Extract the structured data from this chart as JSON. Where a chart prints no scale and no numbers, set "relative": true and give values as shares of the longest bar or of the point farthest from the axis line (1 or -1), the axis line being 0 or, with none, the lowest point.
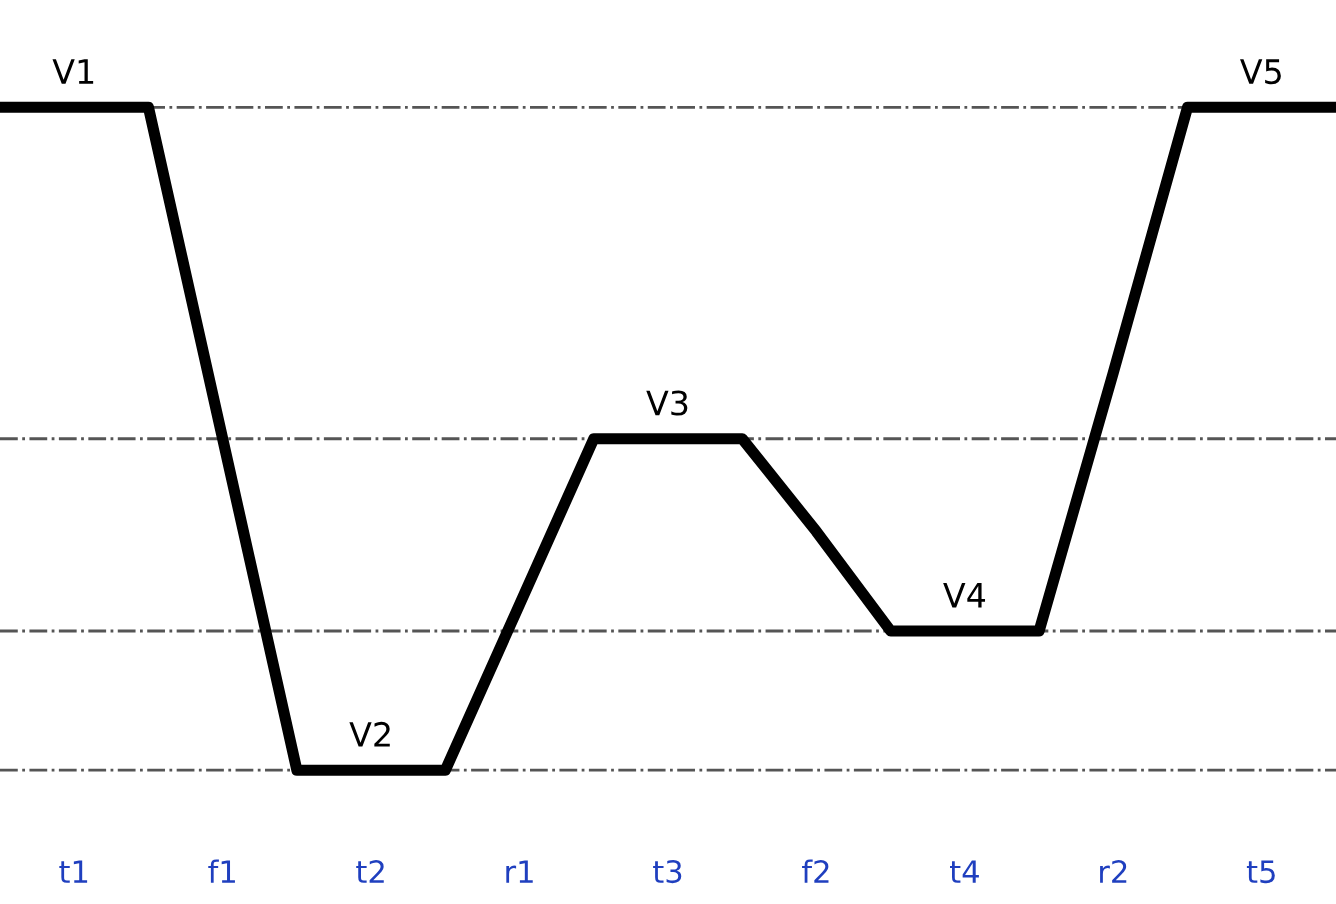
{
  "chart_data": {
    "type": "line",
    "relative": true,
    "tick_labels": "x",
    "categories": [
      null,
      "t1",
      null,
      "f1",
      null,
      "t2",
      null,
      "r1",
      null,
      "t3",
      null,
      "f2",
      null,
      "t4",
      null,
      "r2",
      null,
      "t5",
      null
    ],
    "series": [
      {
        "color": "#000000",
        "values": [
          1,
          1,
          1,
          0.5,
          0,
          0,
          0,
          0.25,
          0.5,
          0.5,
          0.5,
          0.36,
          0.21,
          0.21,
          0.21,
          0.6,
          1,
          1,
          1
        ]
      }
    ],
    "annotations": [
      {
        "text": "V1",
        "x": "t1",
        "y": 1
      },
      {
        "text": "V2",
        "x": "t2",
        "y": 0
      },
      {
        "text": "V3",
        "x": "t3",
        "y": 0.5
      },
      {
        "text": "V4",
        "x": "t4",
        "y": 0.21
      },
      {
        "text": "V5",
        "x": "t5",
        "y": 1
      }
    ],
    "ref_lines": [
      {
        "axis": "y",
        "value": 1,
        "line_style": "dashdot",
        "color": "#555555"
      },
      {
        "axis": "y",
        "value": 0.5,
        "line_style": "dashdot",
        "color": "#555555"
      },
      {
        "axis": "y",
        "value": 0.21,
        "line_style": "dashdot",
        "color": "#555555"
      },
      {
        "axis": "y",
        "value": 0,
        "line_style": "dashdot",
        "color": "#555555"
      }
    ]
  }
}
